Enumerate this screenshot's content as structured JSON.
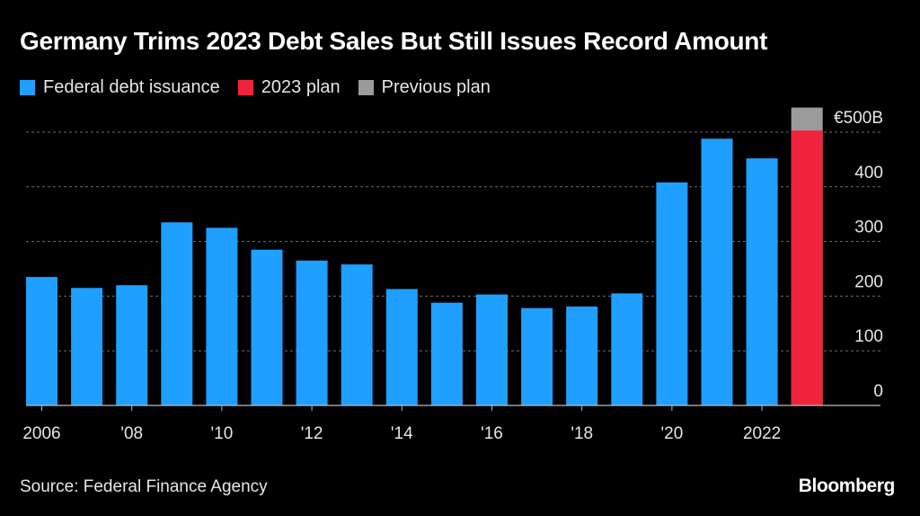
{
  "chart_data": {
    "type": "bar",
    "title": "Germany Trims 2023 Debt Sales But Still Issues Record Amount",
    "categories": [
      "2006",
      "2007",
      "2008",
      "2009",
      "2010",
      "2011",
      "2012",
      "2013",
      "2014",
      "2015",
      "2016",
      "2017",
      "2018",
      "2019",
      "2020",
      "2021",
      "2022",
      "2023"
    ],
    "x_tick_labels": [
      "2006",
      "'08",
      "'10",
      "'12",
      "'14",
      "'16",
      "'18",
      "'20",
      "2022"
    ],
    "x_tick_categories": [
      "2006",
      "2008",
      "2010",
      "2012",
      "2014",
      "2016",
      "2018",
      "2020",
      "2022"
    ],
    "series": [
      {
        "name": "Federal debt issuance",
        "color": "#1f9fff",
        "values": [
          235,
          215,
          220,
          335,
          325,
          285,
          265,
          258,
          213,
          188,
          203,
          178,
          181,
          205,
          408,
          488,
          452,
          null
        ]
      },
      {
        "name": "2023 plan",
        "color": "#f0233d",
        "values": [
          null,
          null,
          null,
          null,
          null,
          null,
          null,
          null,
          null,
          null,
          null,
          null,
          null,
          null,
          null,
          null,
          null,
          503
        ]
      },
      {
        "name": "Previous plan",
        "color": "#9b9b9b",
        "values": [
          null,
          null,
          null,
          null,
          null,
          null,
          null,
          null,
          null,
          null,
          null,
          null,
          null,
          null,
          null,
          null,
          null,
          545
        ]
      }
    ],
    "y_ticks": [
      0,
      100,
      200,
      300,
      400,
      500
    ],
    "y_tick_labels": [
      "0",
      "100",
      "200",
      "300",
      "400",
      "€500B"
    ],
    "ylim": [
      0,
      500
    ],
    "xlabel": "",
    "ylabel": "",
    "grid": true,
    "legend_position": "top-left"
  },
  "legend": [
    {
      "label": "Federal debt issuance",
      "color": "#1f9fff"
    },
    {
      "label": "2023 plan",
      "color": "#f0233d"
    },
    {
      "label": "Previous plan",
      "color": "#9b9b9b"
    }
  ],
  "footer": {
    "source": "Source: Federal Finance Agency",
    "brand": "Bloomberg"
  }
}
